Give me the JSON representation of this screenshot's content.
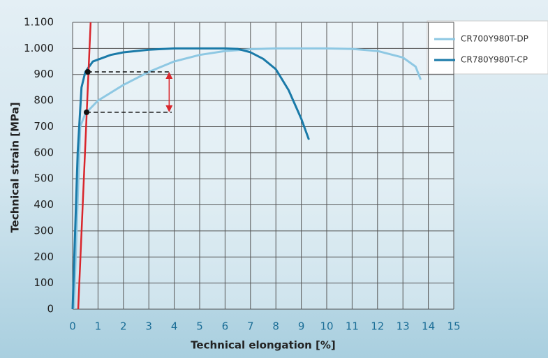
{
  "chart_data": {
    "type": "line",
    "xlabel": "Technical elongation [%]",
    "ylabel": "Technical strain [MPa]",
    "xlim": [
      0,
      15
    ],
    "ylim": [
      0,
      1100
    ],
    "xticks": [
      0,
      1,
      2,
      3,
      4,
      5,
      6,
      7,
      8,
      9,
      10,
      11,
      12,
      13,
      14,
      15
    ],
    "yticks": [
      0,
      100,
      200,
      300,
      400,
      500,
      600,
      700,
      800,
      900,
      {
        "value": 1000,
        "label": "1.000"
      },
      {
        "value": 1100,
        "label": "1.100"
      }
    ],
    "grid": true,
    "legend": "upper right",
    "series": [
      {
        "name": "CR700Y980T-DP",
        "color": "#8ec8e3",
        "x": [
          0.05,
          0.3,
          0.5,
          1,
          2,
          3,
          4,
          5,
          6,
          7,
          8,
          10,
          11,
          12,
          13,
          13.5,
          13.7
        ],
        "values": [
          0,
          700,
          750,
          800,
          860,
          910,
          950,
          975,
          990,
          997,
          1000,
          1000,
          998,
          990,
          965,
          930,
          880
        ]
      },
      {
        "name": "CR780Y980T-CP",
        "color": "#1a7aa8",
        "x": [
          0,
          0.2,
          0.35,
          0.5,
          0.8,
          1.5,
          2,
          3,
          4,
          6,
          6.5,
          7,
          7.5,
          8,
          8.5,
          9,
          9.3
        ],
        "values": [
          0,
          600,
          850,
          910,
          950,
          975,
          985,
          995,
          1000,
          1000,
          998,
          985,
          960,
          920,
          840,
          730,
          650
        ]
      }
    ],
    "offset_line": {
      "color": "#d9262c",
      "x": [
        0.22,
        0.71
      ],
      "values": [
        0,
        1100
      ]
    },
    "guides": {
      "points": [
        {
          "x": 0.6,
          "y": 910
        },
        {
          "x": 0.55,
          "y": 755
        }
      ],
      "x_end": 3.9,
      "arrow_x": 3.8
    }
  }
}
